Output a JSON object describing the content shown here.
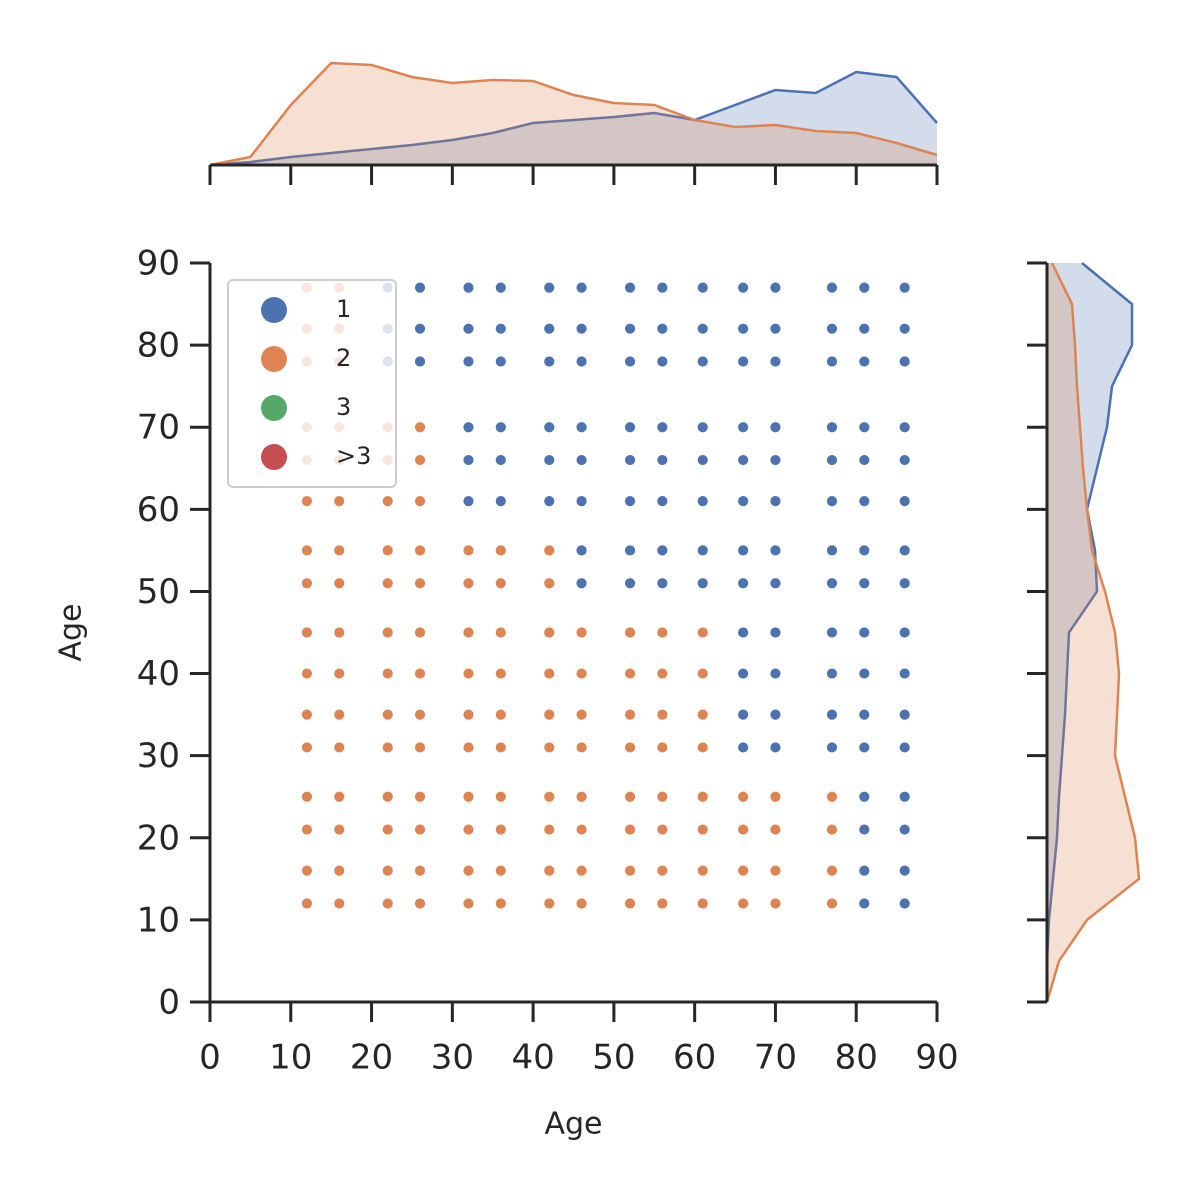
{
  "chart_data": [
    {
      "type": "scatter",
      "xlabel": "Age",
      "ylabel": "Age",
      "xlim": [
        0,
        90
      ],
      "ylim": [
        0,
        90
      ],
      "xticks": [
        0,
        10,
        20,
        30,
        40,
        50,
        60,
        70,
        80,
        90
      ],
      "yticks": [
        0,
        10,
        20,
        30,
        40,
        50,
        60,
        70,
        80,
        90
      ],
      "legend": "upper left",
      "series": [
        {
          "name": "1",
          "color": "#4c72b0",
          "x": [
            22,
            26,
            32,
            36,
            42,
            46,
            52,
            56,
            61,
            66,
            70,
            77,
            81,
            86,
            22,
            26,
            32,
            36,
            42,
            46,
            52,
            56,
            61,
            66,
            70,
            77,
            81,
            86,
            22,
            26,
            32,
            36,
            42,
            46,
            52,
            56,
            61,
            66,
            70,
            77,
            81,
            86,
            32,
            36,
            42,
            46,
            52,
            56,
            61,
            66,
            70,
            77,
            81,
            86,
            32,
            36,
            42,
            46,
            52,
            56,
            61,
            66,
            70,
            77,
            81,
            86,
            32,
            36,
            42,
            46,
            52,
            56,
            61,
            66,
            70,
            77,
            81,
            86,
            46,
            52,
            56,
            61,
            66,
            70,
            77,
            81,
            86,
            46,
            52,
            56,
            61,
            66,
            70,
            77,
            81,
            86,
            66,
            70,
            77,
            81,
            86,
            66,
            70,
            77,
            81,
            86,
            66,
            70,
            77,
            81,
            86,
            66,
            70,
            77,
            81,
            86,
            81,
            86,
            81,
            86,
            81,
            86,
            81,
            86
          ],
          "values": [
            87,
            87,
            87,
            87,
            87,
            87,
            87,
            87,
            87,
            87,
            87,
            87,
            87,
            87,
            82,
            82,
            82,
            82,
            82,
            82,
            82,
            82,
            82,
            82,
            82,
            82,
            82,
            82,
            78,
            78,
            78,
            78,
            78,
            78,
            78,
            78,
            78,
            78,
            78,
            78,
            78,
            78,
            70,
            70,
            70,
            70,
            70,
            70,
            70,
            70,
            70,
            70,
            70,
            70,
            66,
            66,
            66,
            66,
            66,
            66,
            66,
            66,
            66,
            66,
            66,
            66,
            61,
            61,
            61,
            61,
            61,
            61,
            61,
            61,
            61,
            61,
            61,
            61,
            55,
            55,
            55,
            55,
            55,
            55,
            55,
            55,
            55,
            51,
            51,
            51,
            51,
            51,
            51,
            51,
            51,
            51,
            45,
            45,
            45,
            45,
            45,
            40,
            40,
            40,
            40,
            40,
            35,
            35,
            35,
            35,
            35,
            31,
            31,
            31,
            31,
            31,
            25,
            25,
            21,
            21,
            16,
            16,
            12,
            12
          ]
        },
        {
          "name": "2",
          "color": "#dd8452",
          "x": [
            12,
            16,
            12,
            16,
            12,
            16,
            12,
            16,
            22,
            26,
            12,
            16,
            22,
            26,
            12,
            16,
            22,
            26,
            12,
            16,
            22,
            26,
            32,
            36,
            42,
            12,
            16,
            22,
            26,
            32,
            36,
            42,
            12,
            16,
            22,
            26,
            32,
            36,
            42,
            46,
            52,
            56,
            61,
            12,
            16,
            22,
            26,
            32,
            36,
            42,
            46,
            52,
            56,
            61,
            12,
            16,
            22,
            26,
            32,
            36,
            42,
            46,
            52,
            56,
            61,
            12,
            16,
            22,
            26,
            32,
            36,
            42,
            46,
            52,
            56,
            61,
            12,
            16,
            22,
            26,
            32,
            36,
            42,
            46,
            52,
            56,
            61,
            66,
            70,
            77,
            12,
            16,
            22,
            26,
            32,
            36,
            42,
            46,
            52,
            56,
            61,
            66,
            70,
            77,
            12,
            16,
            22,
            26,
            32,
            36,
            42,
            46,
            52,
            56,
            61,
            66,
            70,
            77,
            12,
            16,
            22,
            26,
            32,
            36,
            42,
            46,
            52,
            56,
            61,
            66,
            70,
            77
          ],
          "values": [
            87,
            87,
            82,
            82,
            78,
            78,
            70,
            70,
            70,
            70,
            66,
            66,
            66,
            66,
            61,
            61,
            61,
            61,
            55,
            55,
            55,
            55,
            55,
            55,
            55,
            51,
            51,
            51,
            51,
            51,
            51,
            51,
            45,
            45,
            45,
            45,
            45,
            45,
            45,
            45,
            45,
            45,
            45,
            40,
            40,
            40,
            40,
            40,
            40,
            40,
            40,
            40,
            40,
            40,
            35,
            35,
            35,
            35,
            35,
            35,
            35,
            35,
            35,
            35,
            35,
            31,
            31,
            31,
            31,
            31,
            31,
            31,
            31,
            31,
            31,
            31,
            25,
            25,
            25,
            25,
            25,
            25,
            25,
            25,
            25,
            25,
            25,
            25,
            25,
            25,
            21,
            21,
            21,
            21,
            21,
            21,
            21,
            21,
            21,
            21,
            21,
            21,
            21,
            21,
            16,
            16,
            16,
            16,
            16,
            16,
            16,
            16,
            16,
            16,
            16,
            16,
            16,
            16,
            12,
            12,
            12,
            12,
            12,
            12,
            12,
            12,
            12,
            12,
            12,
            12,
            12,
            12
          ]
        },
        {
          "name": "3",
          "color": "#55a868",
          "x": [],
          "values": []
        },
        {
          "name": ">3",
          "color": "#c44e52",
          "x": [],
          "values": []
        }
      ]
    },
    {
      "type": "kde",
      "orientation": "vertical",
      "xlim": [
        0,
        90
      ],
      "ylim": [
        0,
        110
      ],
      "x": [
        0,
        5,
        10,
        15,
        20,
        25,
        30,
        35,
        40,
        45,
        50,
        55,
        60,
        65,
        70,
        75,
        80,
        85,
        90
      ],
      "series": [
        {
          "name": "1",
          "color": "#4c72b0",
          "values": [
            0,
            3,
            8,
            12,
            16,
            20,
            25,
            32,
            42,
            45,
            48,
            52,
            45,
            60,
            75,
            72,
            93,
            88,
            42
          ]
        },
        {
          "name": "2",
          "color": "#dd8452",
          "values": [
            0,
            8,
            60,
            102,
            100,
            88,
            82,
            85,
            84,
            70,
            62,
            60,
            45,
            38,
            40,
            34,
            32,
            22,
            10
          ]
        }
      ]
    },
    {
      "type": "kde",
      "orientation": "horizontal",
      "ylim": [
        0,
        90
      ],
      "xlim": [
        0,
        110
      ],
      "x": [
        0,
        5,
        10,
        15,
        20,
        25,
        30,
        35,
        40,
        45,
        50,
        55,
        60,
        65,
        70,
        75,
        80,
        85,
        90
      ],
      "series": [
        {
          "name": "1",
          "color": "#4c72b0",
          "values": [
            0,
            0,
            2,
            6,
            10,
            12,
            15,
            18,
            20,
            22,
            50,
            48,
            40,
            50,
            60,
            65,
            85,
            85,
            35
          ]
        },
        {
          "name": "2",
          "color": "#dd8452",
          "values": [
            0,
            12,
            40,
            92,
            88,
            78,
            68,
            70,
            72,
            68,
            58,
            45,
            40,
            36,
            33,
            30,
            28,
            25,
            5
          ]
        }
      ]
    }
  ]
}
